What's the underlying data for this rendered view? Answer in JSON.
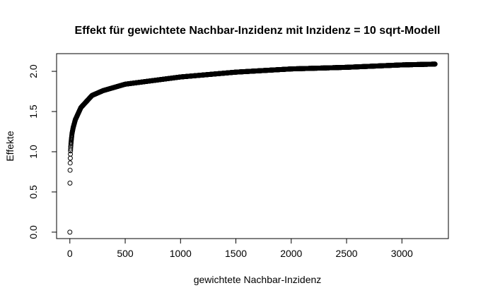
{
  "chart_data": {
    "type": "scatter",
    "title": "Effekt für gewichtete Nachbar-Inzidenz mit Inzidenz = 10 sqrt-Modell",
    "xlabel": "gewichtete Nachbar-Inzidenz",
    "ylabel": "Effekte",
    "xlim": [
      -120,
      3420
    ],
    "ylim": [
      -0.08,
      2.22
    ],
    "x_ticks": [
      0,
      500,
      1000,
      1500,
      2000,
      2500,
      3000
    ],
    "x_tick_labels": [
      "0",
      "500",
      "1000",
      "1500",
      "2000",
      "2500",
      "3000"
    ],
    "y_ticks": [
      0.0,
      0.5,
      1.0,
      1.5,
      2.0
    ],
    "y_tick_labels": [
      "0.0",
      "0.5",
      "1.0",
      "1.5",
      "2.0"
    ],
    "marker": "open-circle",
    "grid": false,
    "legend": "none",
    "series": [
      {
        "x_start": 0,
        "x_end": 3300,
        "x_step": 1,
        "x": [
          0,
          1,
          2,
          3,
          4,
          5,
          6,
          8,
          10,
          12,
          15,
          20,
          30,
          50,
          100,
          200,
          300,
          500,
          1000,
          1500,
          2000,
          2500,
          3000,
          3300
        ],
        "y": [
          0.0,
          0.61,
          0.77,
          0.86,
          0.92,
          0.97,
          1.01,
          1.06,
          1.1,
          1.13,
          1.17,
          1.23,
          1.3,
          1.4,
          1.55,
          1.7,
          1.76,
          1.84,
          1.93,
          1.99,
          2.03,
          2.05,
          2.08,
          2.09
        ]
      }
    ]
  }
}
